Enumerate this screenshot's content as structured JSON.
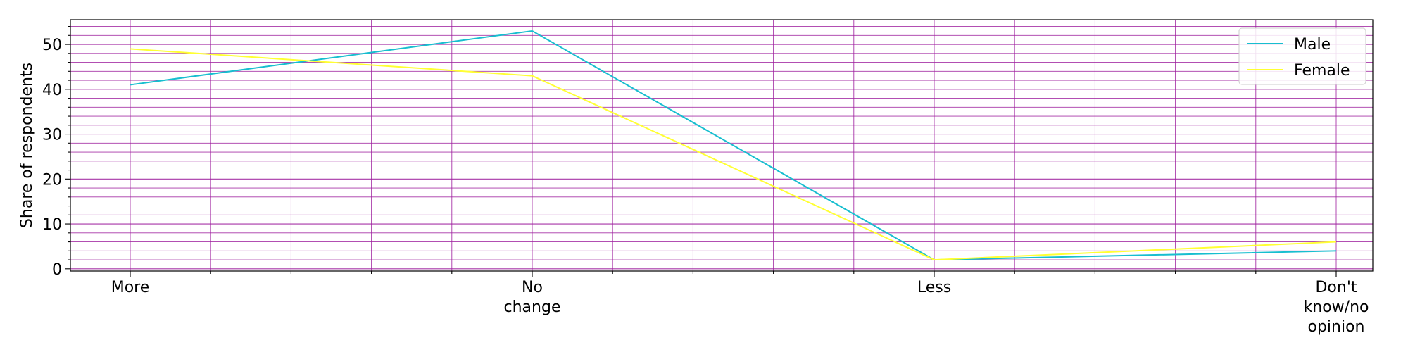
{
  "chart_data": {
    "type": "line",
    "categories": [
      [
        "More"
      ],
      [
        "No",
        "change"
      ],
      [
        "Less"
      ],
      [
        "Don't",
        "know/no",
        "opinion"
      ]
    ],
    "series": [
      {
        "name": "Male",
        "values": [
          41,
          53,
          2,
          4
        ],
        "color": "#17becf"
      },
      {
        "name": "Female",
        "values": [
          49,
          43,
          2,
          6
        ],
        "color": "#ffff33"
      }
    ],
    "title": "",
    "xlabel": "",
    "ylabel": "Share of respondents",
    "ylim": [
      -0.5,
      55.5
    ],
    "yticks": [
      0,
      10,
      20,
      30,
      40,
      50
    ],
    "y_minor_step": 2,
    "x_minor_per_category": 5,
    "grid": true,
    "grid_color": "#9d1f9d",
    "legend_position": "top-right"
  }
}
